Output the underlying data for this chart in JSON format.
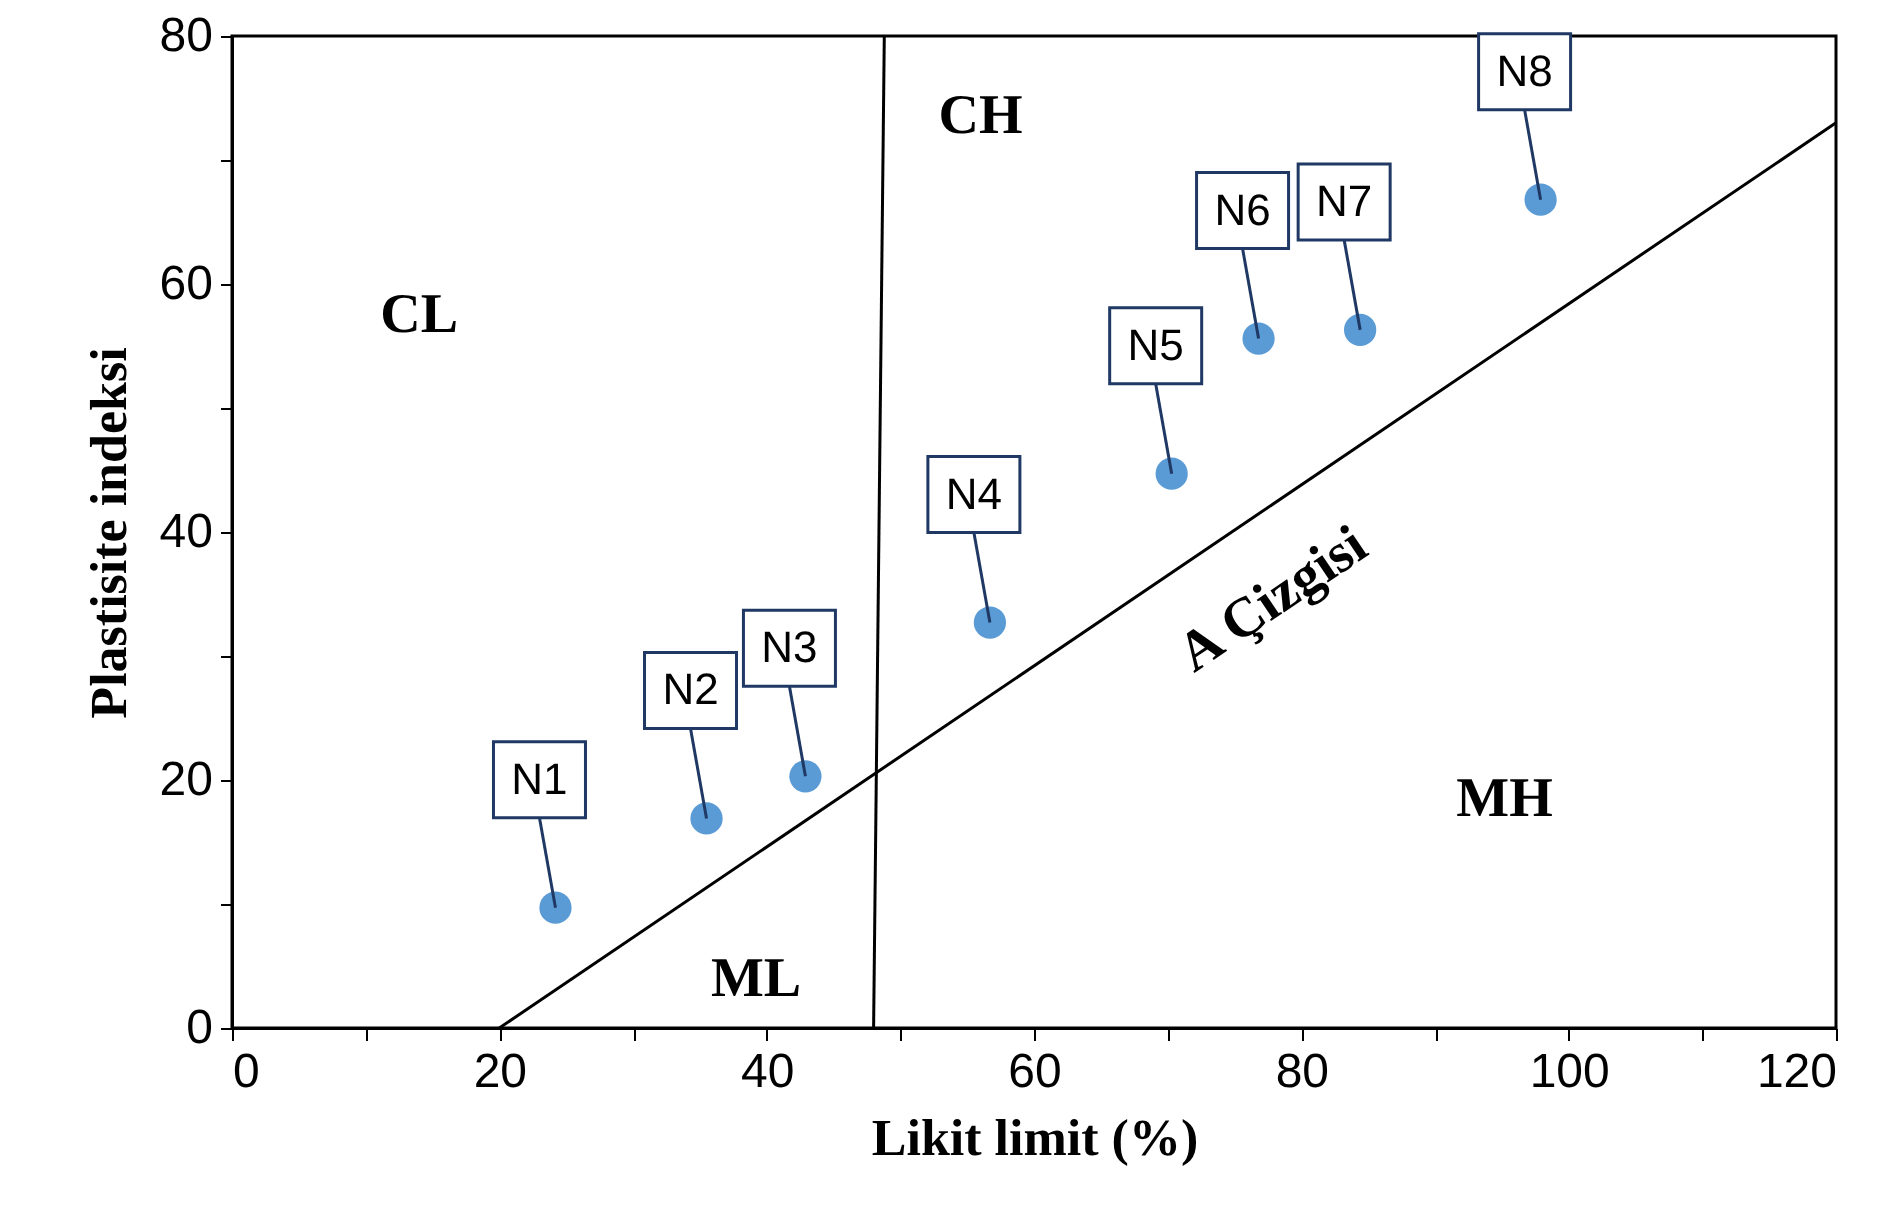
{
  "chart_data": {
    "type": "scatter",
    "xlabel": "Likit limit (%)",
    "ylabel": "Plastisite indeksi",
    "series": [
      {
        "marker": "circle",
        "color": "#5b9bd5",
        "x": [
          24.2,
          35.5,
          42.9,
          56.7,
          70.3,
          76.8,
          84.4,
          97.9
        ],
        "values": [
          9.7,
          16.9,
          20.3,
          32.7,
          44.7,
          55.6,
          56.3,
          66.8
        ]
      },
      {
        "type": "line",
        "color": "#000000",
        "x": [
          20,
          120
        ],
        "values": [
          0,
          73
        ]
      },
      {
        "type": "line",
        "color": "#000000",
        "x": [
          48,
          48.8
        ],
        "values": [
          0,
          80
        ]
      }
    ],
    "annotations": [
      {
        "text": "N1",
        "x": 24.2,
        "y": 9.7
      },
      {
        "text": "N2",
        "x": 35.5,
        "y": 16.9
      },
      {
        "text": "N3",
        "x": 42.9,
        "y": 20.3
      },
      {
        "text": "N4",
        "x": 56.7,
        "y": 32.7
      },
      {
        "text": "N5",
        "x": 70.3,
        "y": 44.7
      },
      {
        "text": "N6",
        "x": 76.8,
        "y": 55.6
      },
      {
        "text": "N7",
        "x": 84.4,
        "y": 56.3
      },
      {
        "text": "N8",
        "x": 97.9,
        "y": 66.8
      },
      "CL",
      "CH",
      "ML",
      "MH",
      "A Çizgisi"
    ],
    "xlim": [
      0,
      120
    ],
    "ylim": [
      0,
      80
    ],
    "xticks": [
      0,
      {
        "value": 10,
        "label": null
      },
      20,
      {
        "value": 30,
        "label": null
      },
      40,
      {
        "value": 50,
        "label": null
      },
      60,
      {
        "value": 70,
        "label": null
      },
      80,
      {
        "value": 90,
        "label": null
      },
      100,
      {
        "value": 110,
        "label": null
      },
      120
    ],
    "yticks": [
      0,
      {
        "value": 10,
        "label": null
      },
      20,
      {
        "value": 30,
        "label": null
      },
      40,
      {
        "value": 50,
        "label": null
      },
      60,
      {
        "value": 70,
        "label": null
      },
      80
    ],
    "grid": false
  }
}
